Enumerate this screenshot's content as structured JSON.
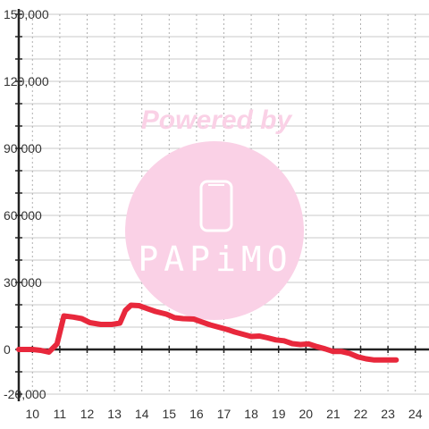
{
  "chart_data": {
    "type": "line",
    "title": "",
    "xlabel": "",
    "ylabel": "",
    "xlim": [
      9.5,
      24.5
    ],
    "ylim": [
      -20000,
      150000
    ],
    "x_ticks": [
      {
        "value": 10,
        "label": "10"
      },
      {
        "value": 11,
        "label": "11"
      },
      {
        "value": 12,
        "label": "12"
      },
      {
        "value": 13,
        "label": "13"
      },
      {
        "value": 14,
        "label": "14"
      },
      {
        "value": 15,
        "label": "15"
      },
      {
        "value": 16,
        "label": "16"
      },
      {
        "value": 17,
        "label": "17"
      },
      {
        "value": 18,
        "label": "18"
      },
      {
        "value": 19,
        "label": "19"
      },
      {
        "value": 20,
        "label": "20"
      },
      {
        "value": 21,
        "label": "21"
      },
      {
        "value": 22,
        "label": "22"
      },
      {
        "value": 23,
        "label": "23"
      },
      {
        "value": 24,
        "label": "24"
      }
    ],
    "y_ticks": [
      {
        "value": 150000,
        "label": "150,000"
      },
      {
        "value": 120000,
        "label": "120,000"
      },
      {
        "value": 90000,
        "label": "90,000"
      },
      {
        "value": 60000,
        "label": "60,000"
      },
      {
        "value": 30000,
        "label": "30,000"
      },
      {
        "value": 0,
        "label": "0"
      },
      {
        "value": -20000,
        "label": "-20,000"
      }
    ],
    "grid": true,
    "series": [
      {
        "color": "#e8283c",
        "x": [
          9.5,
          10.0,
          10.3,
          10.6,
          10.9,
          11.15,
          11.5,
          11.8,
          12.1,
          12.5,
          12.9,
          13.2,
          13.4,
          13.6,
          13.9,
          14.2,
          14.5,
          14.9,
          15.2,
          15.5,
          15.9,
          16.2,
          16.5,
          16.8,
          17.1,
          17.4,
          17.7,
          18.0,
          18.3,
          18.6,
          18.9,
          19.2,
          19.5,
          19.8,
          20.1,
          20.4,
          20.7,
          21.0,
          21.3,
          21.6,
          21.9,
          22.2,
          22.5,
          22.8,
          23.1,
          23.3
        ],
        "y": [
          0,
          0,
          -400,
          -1200,
          2500,
          15000,
          14500,
          13800,
          12000,
          11200,
          11200,
          11800,
          17500,
          19800,
          19600,
          18300,
          17000,
          15800,
          14200,
          13800,
          13600,
          12300,
          11000,
          10000,
          9000,
          7800,
          6800,
          5800,
          6000,
          5200,
          4300,
          3900,
          2600,
          2200,
          2500,
          1300,
          300,
          -900,
          -900,
          -1800,
          -3300,
          -4200,
          -4700,
          -4700,
          -4700,
          -4700
        ]
      }
    ],
    "zero_line": true
  },
  "watermark": {
    "powered_text": "Powered by",
    "brand_text": "PAPiMO",
    "circle_color": "#fad1e6"
  }
}
